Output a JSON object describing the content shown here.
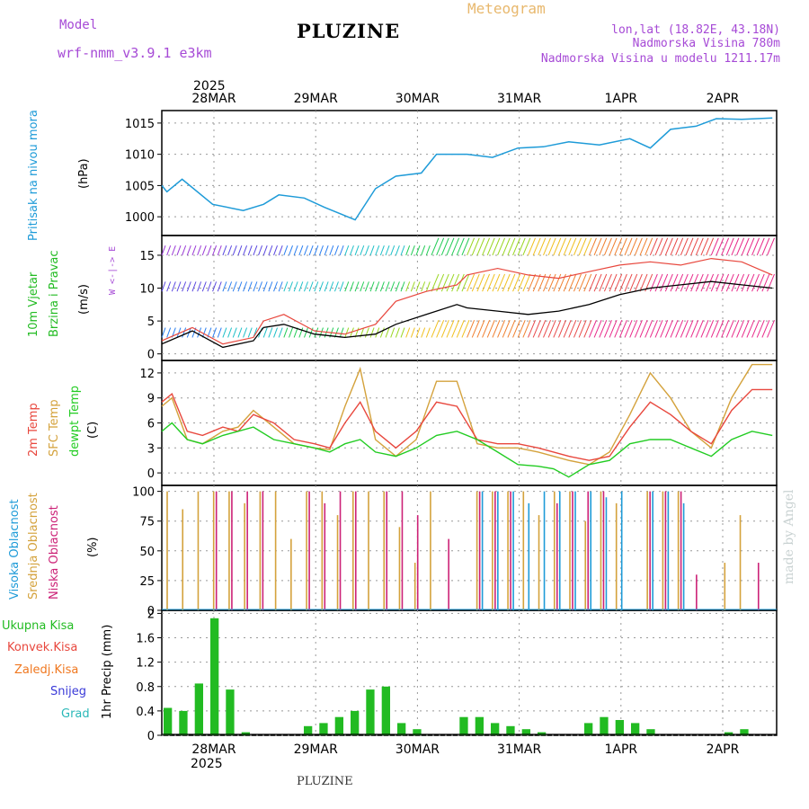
{
  "header": {
    "model_label": "Model",
    "model_name": "wrf-nmm_v3.9.1  e3km",
    "title": "PLUZINE",
    "meteogram_label": "Meteogram",
    "lonlat": "lon,lat (18.82E, 43.18N)",
    "elevation": "Nadmorska Visina 780m",
    "model_elevation": "Nadmorska Visina u modelu 1211.17m",
    "year": "2025",
    "footer": "PLUZINE",
    "watermark": "made by Angel"
  },
  "dates": [
    "28MAR",
    "29MAR",
    "30MAR",
    "31MAR",
    "1APR",
    "2APR"
  ],
  "colors": {
    "pressure": "#1e9bd8",
    "wind_label": "#22bb22",
    "wind_axis": "#a64ad6",
    "temp_2m": "#e8473d",
    "temp_sfc": "#d4a23c",
    "dewpoint": "#22cc22",
    "high_cloud": "#1e9bd8",
    "mid_cloud": "#d4a23c",
    "low_cloud": "#cc2277",
    "rain": "#22bb22",
    "conv": "#e8473d",
    "frz": "#f07820",
    "snow": "#3a3ad8",
    "hail": "#2ab8b8"
  },
  "panel_labels": {
    "pressure": {
      "name": "Pritisak na nivou mora",
      "unit": "(hPa)"
    },
    "wind": {
      "name1": "10m Vjetar",
      "name2": "Brzina i Pravac",
      "unit": "(m/s)",
      "compass": "W <-|-> E"
    },
    "temp": {
      "l1": "2m Temp",
      "l2": "SFC Temp",
      "l3": "dewpt Temp",
      "unit": "(C)"
    },
    "cloud": {
      "l1": "Visoka Oblacnost",
      "l2": "Srednja Oblacnost",
      "l3": "Niska Oblacnost",
      "unit": "(%)"
    },
    "precip": {
      "l1": "Ukupna Kisa",
      "l2": "Konvek.Kisa",
      "l3": "Zaledj.Kisa",
      "l4": "Snijeg",
      "l5": "Grad",
      "unit": "1hr Precip (mm)"
    }
  },
  "chart_data": [
    {
      "type": "line",
      "title": "Pritisak na nivou mora",
      "ylabel": "(hPa)",
      "ylim": [
        997,
        1017
      ],
      "yticks": [
        "1000",
        "1005",
        "1010",
        "1015"
      ],
      "x_days": [
        0.0,
        0.05,
        0.2,
        0.5,
        0.8,
        1.0,
        1.15,
        1.4,
        1.6,
        1.9,
        2.1,
        2.3,
        2.55,
        2.7,
        3.0,
        3.25,
        3.5,
        3.75,
        4.0,
        4.3,
        4.6,
        4.8,
        5.0,
        5.25,
        5.45,
        5.7,
        6.0
      ],
      "series": [
        {
          "name": "SLP",
          "values": [
            1005,
            1004,
            1006,
            1002,
            1001,
            1002,
            1003.5,
            1003,
            1001.5,
            999.5,
            1004.5,
            1006.5,
            1007,
            1010,
            1010,
            1009.5,
            1011,
            1011.2,
            1012,
            1011.5,
            1012.5,
            1011,
            1014,
            1014.5,
            1015.7,
            1015.6,
            1015.8
          ]
        }
      ]
    },
    {
      "type": "line",
      "title": "10m Vjetar Brzina i Pravac",
      "ylabel": "(m/s)",
      "ylim": [
        -1,
        18
      ],
      "yticks": [
        "0",
        "5",
        "10",
        "15"
      ],
      "x_days": [
        0.0,
        0.3,
        0.6,
        0.9,
        1.0,
        1.2,
        1.5,
        1.8,
        2.1,
        2.3,
        2.6,
        2.9,
        3.0,
        3.3,
        3.6,
        3.9,
        4.2,
        4.5,
        4.8,
        5.1,
        5.4,
        5.7,
        6.0
      ],
      "series": [
        {
          "name": "wind speed",
          "values": [
            1.5,
            3.5,
            1.0,
            2.0,
            4.0,
            4.5,
            3.0,
            2.5,
            3.0,
            4.5,
            6.0,
            7.5,
            7.0,
            6.5,
            6.0,
            6.5,
            7.5,
            9.0,
            10.0,
            10.5,
            11.0,
            10.5,
            10.0
          ]
        },
        {
          "name": "gust",
          "values": [
            2.0,
            4.0,
            1.5,
            2.5,
            5.0,
            6.0,
            3.5,
            3.0,
            4.5,
            8.0,
            9.5,
            10.5,
            12.0,
            13.0,
            12.0,
            11.5,
            12.5,
            13.5,
            14.0,
            13.5,
            14.5,
            14.0,
            12.0
          ]
        }
      ]
    },
    {
      "type": "line",
      "title": "2m / SFC / dewpoint Temp",
      "ylabel": "(C)",
      "ylim": [
        -1.5,
        13.5
      ],
      "yticks": [
        "0",
        "3",
        "6",
        "9",
        "12"
      ],
      "x_days": [
        0.0,
        0.1,
        0.25,
        0.4,
        0.6,
        0.75,
        0.9,
        1.1,
        1.3,
        1.5,
        1.65,
        1.8,
        1.95,
        2.1,
        2.3,
        2.5,
        2.7,
        2.9,
        3.1,
        3.3,
        3.5,
        3.7,
        3.85,
        4.0,
        4.2,
        4.4,
        4.6,
        4.8,
        5.0,
        5.2,
        5.4,
        5.6,
        5.8,
        6.0
      ],
      "series": [
        {
          "name": "2m Temp",
          "values": [
            8.5,
            9.5,
            5.0,
            4.5,
            5.5,
            5.0,
            7.0,
            6.0,
            4.0,
            3.5,
            3.0,
            6.0,
            8.5,
            5.0,
            3.0,
            5.0,
            8.5,
            8.0,
            4.0,
            3.5,
            3.5,
            3.0,
            2.5,
            2.0,
            1.5,
            2.0,
            5.5,
            8.5,
            7.0,
            5.0,
            3.5,
            7.5,
            10.0,
            10.0
          ]
        },
        {
          "name": "SFC Temp",
          "values": [
            8.0,
            9.0,
            4.0,
            3.5,
            5.0,
            5.5,
            7.5,
            5.5,
            3.5,
            3.0,
            2.8,
            8.0,
            12.5,
            4.0,
            2.0,
            4.0,
            11.0,
            11.0,
            3.5,
            3.0,
            3.0,
            2.5,
            2.0,
            1.5,
            1.0,
            2.5,
            7.0,
            12.0,
            9.0,
            5.0,
            3.0,
            9.0,
            13.0,
            13.0
          ]
        },
        {
          "name": "dewpt Temp",
          "values": [
            5.0,
            6.0,
            4.0,
            3.5,
            4.5,
            5.0,
            5.5,
            4.0,
            3.5,
            3.0,
            2.5,
            3.5,
            4.0,
            2.5,
            2.0,
            3.0,
            4.5,
            5.0,
            4.0,
            2.5,
            1.0,
            0.8,
            0.5,
            -0.5,
            1.0,
            1.5,
            3.5,
            4.0,
            4.0,
            3.0,
            2.0,
            4.0,
            5.0,
            4.5
          ]
        }
      ]
    },
    {
      "type": "bar",
      "title": "Oblacnost",
      "ylabel": "(%)",
      "ylim": [
        0,
        105
      ],
      "yticks": [
        "0",
        "25",
        "50",
        "75",
        "100"
      ],
      "series": [
        {
          "name": "Srednja Oblacnost",
          "values": [
            100,
            85,
            100,
            100,
            100,
            90,
            100,
            100,
            60,
            100,
            100,
            80,
            100,
            100,
            100,
            70,
            40,
            100,
            0,
            0,
            100,
            100,
            100,
            100,
            80,
            100,
            100,
            75,
            100,
            90,
            0,
            100,
            100,
            100,
            0,
            0,
            40,
            80,
            0
          ]
        },
        {
          "name": "Niska Oblacnost",
          "values": [
            0,
            0,
            0,
            100,
            100,
            100,
            100,
            0,
            0,
            100,
            90,
            100,
            100,
            0,
            100,
            100,
            80,
            0,
            60,
            0,
            100,
            100,
            100,
            0,
            0,
            90,
            100,
            100,
            100,
            0,
            0,
            100,
            100,
            100,
            30,
            0,
            0,
            0,
            40
          ]
        },
        {
          "name": "Visoka Oblacnost",
          "values": [
            0,
            0,
            0,
            0,
            0,
            0,
            0,
            0,
            0,
            0,
            0,
            0,
            0,
            0,
            0,
            0,
            0,
            0,
            0,
            0,
            100,
            100,
            100,
            90,
            100,
            100,
            100,
            100,
            95,
            100,
            0,
            100,
            100,
            90,
            0,
            0,
            0,
            0,
            0
          ]
        }
      ]
    },
    {
      "type": "bar",
      "title": "1hr Precip",
      "ylabel": "1hr Precip (mm)",
      "ylim": [
        0,
        2.05
      ],
      "yticks": [
        "0",
        "0.4",
        "0.8",
        "1.2",
        "1.6",
        "2"
      ],
      "series": [
        {
          "name": "Ukupna Kisa",
          "values": [
            0.45,
            0.4,
            0.85,
            1.92,
            0.75,
            0.05,
            0.0,
            0.0,
            0.0,
            0.15,
            0.2,
            0.3,
            0.4,
            0.75,
            0.8,
            0.2,
            0.1,
            0.0,
            0.0,
            0.3,
            0.3,
            0.2,
            0.15,
            0.1,
            0.05,
            0.0,
            0.0,
            0.2,
            0.3,
            0.25,
            0.2,
            0.1,
            0.0,
            0.0,
            0.0,
            0.0,
            0.05,
            0.1,
            0.0
          ]
        },
        {
          "name": "Konvek.Kisa",
          "values": [
            0.0,
            0.0,
            0.0,
            0.0,
            0.0,
            0.0,
            0.0,
            0.0,
            0.0,
            0.0,
            0.0,
            0.0,
            0.0,
            0.0,
            0.0,
            0.0,
            0.0,
            0.0,
            0.0,
            0.0,
            0.0,
            0.0,
            0.0,
            0.0,
            0.0,
            0.0,
            0.0,
            0.0,
            0.0,
            0.0,
            0.0,
            0.0,
            0.0,
            0.0,
            0.0,
            0.0,
            0.0,
            0.0,
            0.0
          ]
        }
      ]
    }
  ]
}
